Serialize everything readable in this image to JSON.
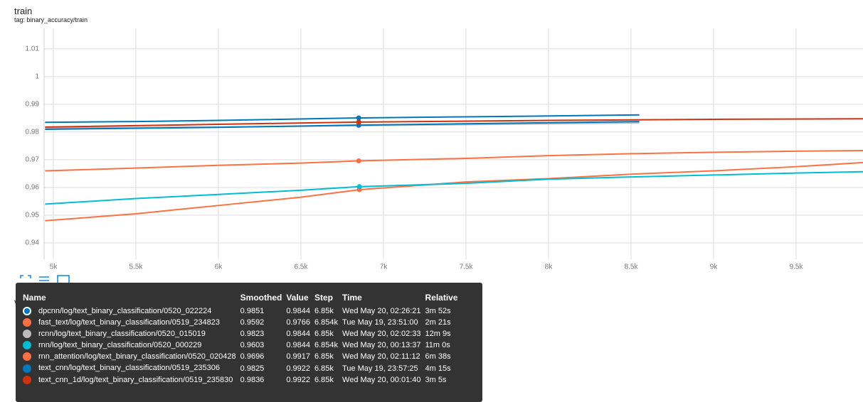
{
  "chart_data": {
    "type": "line",
    "title": "train",
    "subtitle": "tag: binary_accuracy/train",
    "xlim": [
      4944,
      9905
    ],
    "ylim": [
      0.9341,
      1.0174
    ],
    "xticks": [
      {
        "value": 5000,
        "label": "5k"
      },
      {
        "value": 5500,
        "label": "5.5k"
      },
      {
        "value": 6000,
        "label": "6k"
      },
      {
        "value": 6500,
        "label": "6.5k"
      },
      {
        "value": 7000,
        "label": "7k"
      },
      {
        "value": 7500,
        "label": "7.5k"
      },
      {
        "value": 8000,
        "label": "8k"
      },
      {
        "value": 8500,
        "label": "8.5k"
      },
      {
        "value": 9000,
        "label": "9k"
      },
      {
        "value": 9500,
        "label": "9.5k"
      }
    ],
    "yticks": [
      0.94,
      0.95,
      0.96,
      0.97,
      0.98,
      0.99,
      1,
      1.01
    ],
    "grid": true,
    "series": [
      {
        "name": "dpcnn/log/text_binary_classification/0520_022224",
        "color": "#0077bb",
        "x": [
          4950,
          5500,
          6000,
          6850,
          7500,
          8000,
          8550
        ],
        "values": [
          0.9835,
          0.9838,
          0.9842,
          0.9851,
          0.9855,
          0.9858,
          0.9862
        ]
      },
      {
        "name": "fast_text/log/text_binary_classification/0519_234823",
        "color": "#ff7043",
        "x": [
          4950,
          5500,
          6000,
          6500,
          6854,
          7500,
          8000,
          8500,
          9000,
          9500,
          9905
        ],
        "values": [
          0.948,
          0.9505,
          0.9535,
          0.9565,
          0.9592,
          0.962,
          0.9632,
          0.9648,
          0.966,
          0.9675,
          0.969
        ]
      },
      {
        "name": "rcnn/log/text_binary_classification/0520_015019",
        "color": "#bbbbbb",
        "x": [
          4950,
          6000,
          6850,
          8550
        ],
        "values": [
          0.9815,
          0.9818,
          0.9823,
          0.9833
        ]
      },
      {
        "name": "rnn/log/text_binary_classification/0520_000229",
        "color": "#00bcd4",
        "x": [
          4950,
          5500,
          6000,
          6500,
          6854,
          7500,
          8000,
          8500,
          9000,
          9500,
          9905
        ],
        "values": [
          0.954,
          0.956,
          0.9575,
          0.959,
          0.9603,
          0.9615,
          0.963,
          0.9638,
          0.9645,
          0.9652,
          0.9657
        ]
      },
      {
        "name": "rnn_attention/log/text_binary_classification/0520_020428",
        "color": "#ff7043",
        "x": [
          4950,
          5500,
          6000,
          6500,
          6850,
          7500,
          8000,
          8500,
          9000,
          9500,
          9905
        ],
        "values": [
          0.966,
          0.967,
          0.968,
          0.9688,
          0.9696,
          0.9705,
          0.9715,
          0.9722,
          0.9727,
          0.9731,
          0.9733
        ]
      },
      {
        "name": "text_cnn/log/text_binary_classification/0519_235306",
        "color": "#0077bb",
        "x": [
          4950,
          6000,
          6850,
          8550
        ],
        "values": [
          0.981,
          0.9817,
          0.9825,
          0.9838
        ]
      },
      {
        "name": "text_cnn_1d/log/text_binary_classification/0519_235830",
        "color": "#cc3311",
        "x": [
          4950,
          6000,
          6850,
          8000,
          9000,
          9905
        ],
        "values": [
          0.9818,
          0.9828,
          0.9836,
          0.9842,
          0.9846,
          0.9848
        ]
      }
    ]
  },
  "tooltip": {
    "columns": [
      "Name",
      "Smoothed",
      "Value",
      "Step",
      "Time",
      "Relative"
    ],
    "rows": [
      {
        "smoothed": 0.9851,
        "value": 0.9844,
        "step": {
          "value": 6850,
          "label": "6.85k"
        },
        "time": "Wed May 20, 02:26:21",
        "relative": "3m 52s"
      },
      {
        "smoothed": 0.9592,
        "value": 0.9766,
        "step": {
          "value": 6854,
          "label": "6.854k"
        },
        "time": "Tue May 19, 23:51:00",
        "relative": "2m 21s"
      },
      {
        "smoothed": 0.9823,
        "value": 0.9844,
        "step": {
          "value": 6850,
          "label": "6.85k"
        },
        "time": "Wed May 20, 02:02:33",
        "relative": "12m 9s"
      },
      {
        "smoothed": 0.9603,
        "value": 0.9844,
        "step": {
          "value": 6854,
          "label": "6.854k"
        },
        "time": "Wed May 20, 00:13:37",
        "relative": "11m 0s"
      },
      {
        "smoothed": 0.9696,
        "value": 0.9917,
        "step": {
          "value": 6850,
          "label": "6.85k"
        },
        "time": "Wed May 20, 02:11:12",
        "relative": "6m 38s"
      },
      {
        "smoothed": 0.9825,
        "value": 0.9922,
        "step": {
          "value": 6850,
          "label": "6.85k"
        },
        "time": "Tue May 19, 23:57:25",
        "relative": "4m 15s"
      },
      {
        "smoothed": 0.9836,
        "value": 0.9922,
        "step": {
          "value": 6850,
          "label": "6.85k"
        },
        "time": "Wed May 20, 00:01:40",
        "relative": "3m 5s"
      }
    ]
  },
  "valid_title": "valid"
}
